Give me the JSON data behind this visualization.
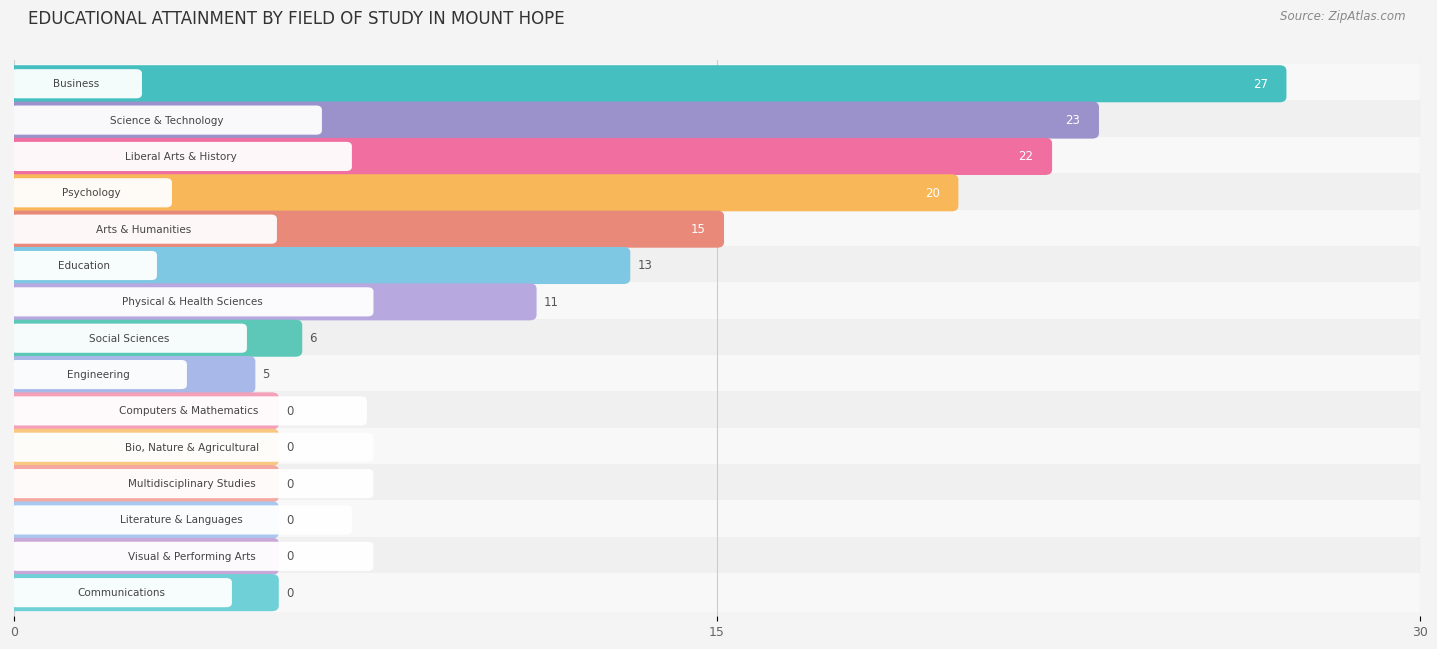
{
  "title": "EDUCATIONAL ATTAINMENT BY FIELD OF STUDY IN MOUNT HOPE",
  "source": "Source: ZipAtlas.com",
  "categories": [
    "Business",
    "Science & Technology",
    "Liberal Arts & History",
    "Psychology",
    "Arts & Humanities",
    "Education",
    "Physical & Health Sciences",
    "Social Sciences",
    "Engineering",
    "Computers & Mathematics",
    "Bio, Nature & Agricultural",
    "Multidisciplinary Studies",
    "Literature & Languages",
    "Visual & Performing Arts",
    "Communications"
  ],
  "values": [
    27,
    23,
    22,
    20,
    15,
    13,
    11,
    6,
    5,
    0,
    0,
    0,
    0,
    0,
    0
  ],
  "bar_colors": [
    "#45BFC0",
    "#9B92CC",
    "#F06FA0",
    "#F8B85A",
    "#E8897A",
    "#7EC8E3",
    "#B8A8E0",
    "#5DC8B8",
    "#A8B8E8",
    "#F4A0B8",
    "#F8C880",
    "#F4A8A0",
    "#A8C8F0",
    "#C8A8D8",
    "#70D0D8"
  ],
  "xlim": [
    0,
    30
  ],
  "xticks": [
    0,
    15,
    30
  ],
  "background_color": "#f4f4f4",
  "row_bg_even": "#f0f0f0",
  "row_bg_odd": "#fafafa",
  "title_fontsize": 12,
  "source_fontsize": 8.5,
  "bar_height": 0.72,
  "zero_stub": 5.5
}
